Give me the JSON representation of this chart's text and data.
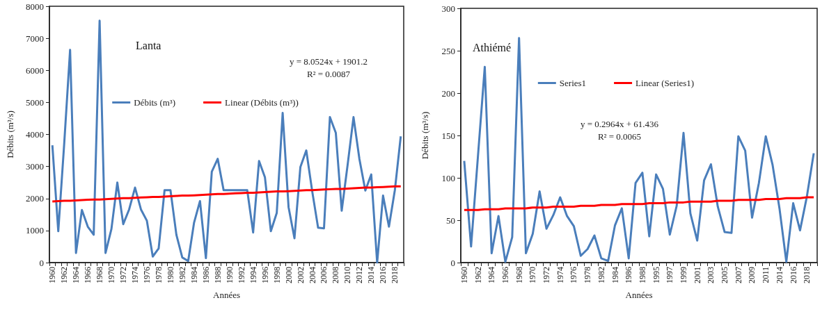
{
  "chart_data": [
    {
      "type": "line",
      "title": "Lanta",
      "xlabel": "Années",
      "ylabel": "Débits (m³/s)",
      "legend": "top",
      "marker": "none",
      "grid": false,
      "ylim": [
        0,
        8000
      ],
      "yticks": [
        0,
        1000,
        2000,
        3000,
        4000,
        5000,
        6000,
        7000,
        8000
      ],
      "annotations": [
        "y = 8.0524x + 1901.2",
        "R² = 0.0087"
      ],
      "categories": [
        "1960",
        null,
        "1962",
        null,
        "1964",
        null,
        "1966",
        null,
        "1968",
        null,
        "1970",
        null,
        "1972",
        null,
        "1974",
        null,
        "1976",
        null,
        "1978",
        null,
        "1980",
        null,
        "1982",
        null,
        "1984",
        null,
        "1986",
        null,
        "1988",
        null,
        "1990",
        null,
        "1992",
        null,
        "1994",
        null,
        "1996",
        null,
        "1998",
        null,
        "2000",
        null,
        "2002",
        null,
        "2004",
        null,
        "2006",
        null,
        "2008",
        null,
        "2010",
        null,
        "2012",
        null,
        "2014",
        null,
        "2016",
        null,
        "2018",
        null
      ],
      "series": [
        {
          "name": "Débits (m³)",
          "color": "#4a7ebb",
          "values": [
            3660,
            980,
            3700,
            6640,
            300,
            1640,
            1120,
            870,
            7550,
            300,
            1050,
            2500,
            1200,
            1660,
            2340,
            1660,
            1310,
            190,
            440,
            2260,
            2260,
            870,
            160,
            50,
            1250,
            1920,
            140,
            2840,
            3240,
            2260,
            2260,
            2260,
            2260,
            2260,
            940,
            3170,
            2660,
            980,
            1550,
            4670,
            1730,
            760,
            2980,
            3500,
            2230,
            1090,
            1070,
            4540,
            4050,
            1620,
            3050,
            4540,
            3230,
            2250,
            2750,
            0,
            2090,
            1120,
            2260,
            3940
          ]
        },
        {
          "name": "Linear (Débits (m³))",
          "color": "#ff0000",
          "values": [
            1910,
            1920,
            1930,
            1930,
            1940,
            1950,
            1960,
            1970,
            1970,
            1980,
            1990,
            2000,
            2010,
            2010,
            2020,
            2030,
            2040,
            2050,
            2050,
            2060,
            2070,
            2080,
            2090,
            2090,
            2100,
            2110,
            2120,
            2130,
            2140,
            2140,
            2150,
            2160,
            2170,
            2180,
            2180,
            2190,
            2200,
            2210,
            2220,
            2220,
            2230,
            2240,
            2250,
            2260,
            2260,
            2270,
            2280,
            2290,
            2300,
            2300,
            2310,
            2320,
            2330,
            2340,
            2340,
            2350,
            2360,
            2370,
            2380,
            2380
          ]
        }
      ]
    },
    {
      "type": "line",
      "title": "Athiémé",
      "xlabel": "Années",
      "ylabel": "Débits (m³/s)",
      "legend": "top",
      "marker": "none",
      "grid": false,
      "ylim": [
        0,
        300
      ],
      "yticks": [
        0,
        50,
        100,
        150,
        200,
        250,
        300
      ],
      "annotations": [
        "y = 0.2964x + 61.436",
        "R² = 0.0065"
      ],
      "categories": [
        "1960",
        null,
        "1962",
        null,
        "1964",
        null,
        "1966",
        null,
        "1968",
        null,
        "1970",
        null,
        "1972",
        null,
        "1974",
        null,
        "1976",
        null,
        "1978",
        null,
        "1982",
        null,
        "1984",
        null,
        "1986",
        null,
        "1988",
        null,
        "1995",
        null,
        "1997",
        null,
        "1999",
        null,
        "2001",
        null,
        "2003",
        null,
        "2005",
        null,
        "2007",
        null,
        "2009",
        null,
        "2011",
        null,
        "2014",
        null,
        "2016",
        null,
        "2018",
        null
      ],
      "series": [
        {
          "name": "Series1",
          "color": "#4a7ebb",
          "values": [
            120,
            19,
            125,
            231,
            11,
            55,
            1,
            30,
            265,
            11,
            34,
            84,
            40,
            56,
            77,
            55,
            43,
            8,
            16,
            32,
            5,
            2,
            44,
            64,
            5,
            94,
            106,
            31,
            104,
            87,
            33,
            67,
            153,
            58,
            26,
            97,
            116,
            66,
            36,
            35,
            149,
            132,
            53,
            94,
            149,
            115,
            64,
            1,
            70,
            38,
            78,
            129
          ]
        },
        {
          "name": "Linear (Series1)",
          "color": "#ff0000",
          "values": [
            62,
            62,
            62,
            63,
            63,
            63,
            64,
            64,
            64,
            64,
            65,
            65,
            65,
            66,
            66,
            66,
            66,
            67,
            67,
            67,
            68,
            68,
            68,
            69,
            69,
            69,
            69,
            70,
            70,
            70,
            71,
            71,
            71,
            72,
            72,
            72,
            72,
            73,
            73,
            73,
            74,
            74,
            74,
            74,
            75,
            75,
            75,
            76,
            76,
            76,
            77,
            77
          ]
        }
      ]
    }
  ]
}
